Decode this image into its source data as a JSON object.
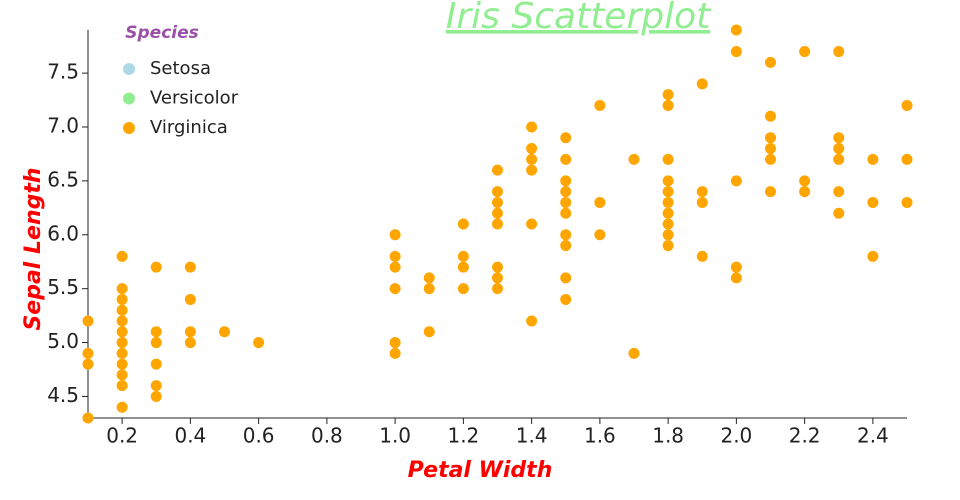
{
  "chart_data": {
    "type": "scatter",
    "title": "Iris Scatterplot",
    "title_color": "lightgreen",
    "x_label": "Petal Width",
    "y_label": "Sepal Length",
    "legend": {
      "title": "Species",
      "items": [
        {
          "name": "Setosa",
          "color": "lightblue"
        },
        {
          "name": "Versicolor",
          "color": "lightgreen"
        },
        {
          "name": "Virginica",
          "color": "orange"
        }
      ]
    },
    "point_color": "orange",
    "x": [
      0.1,
      0.1,
      0.1,
      0.1,
      0.2,
      0.2,
      0.2,
      0.2,
      0.2,
      0.2,
      0.2,
      0.2,
      0.2,
      0.2,
      0.2,
      0.2,
      0.3,
      0.3,
      0.3,
      0.3,
      0.3,
      0.3,
      0.4,
      0.4,
      0.4,
      0.4,
      0.5,
      0.6,
      1.0,
      1.0,
      1.0,
      1.0,
      1.0,
      1.0,
      1.1,
      1.1,
      1.1,
      1.2,
      1.2,
      1.2,
      1.2,
      1.3,
      1.3,
      1.3,
      1.3,
      1.3,
      1.3,
      1.3,
      1.3,
      1.4,
      1.4,
      1.4,
      1.4,
      1.4,
      1.4,
      1.5,
      1.5,
      1.5,
      1.5,
      1.5,
      1.5,
      1.5,
      1.5,
      1.5,
      1.5,
      1.6,
      1.6,
      1.6,
      1.7,
      1.7,
      1.8,
      1.8,
      1.8,
      1.8,
      1.8,
      1.8,
      1.8,
      1.8,
      1.8,
      1.8,
      1.9,
      1.9,
      1.9,
      1.9,
      2.0,
      2.0,
      2.0,
      2.0,
      2.0,
      2.1,
      2.1,
      2.1,
      2.1,
      2.1,
      2.1,
      2.2,
      2.2,
      2.2,
      2.3,
      2.3,
      2.3,
      2.3,
      2.3,
      2.3,
      2.4,
      2.4,
      2.4,
      2.5,
      2.5,
      2.5
    ],
    "values": [
      5.2,
      4.9,
      4.8,
      4.3,
      5.8,
      5.5,
      5.4,
      5.3,
      5.2,
      5.1,
      5.0,
      4.9,
      4.8,
      4.7,
      4.6,
      4.4,
      5.7,
      5.1,
      5.0,
      4.8,
      4.6,
      4.5,
      5.7,
      5.4,
      5.1,
      5.0,
      5.1,
      5.0,
      6.0,
      5.8,
      5.7,
      5.5,
      5.0,
      4.9,
      5.6,
      5.5,
      5.1,
      6.1,
      5.8,
      5.7,
      5.5,
      6.6,
      6.4,
      6.3,
      6.2,
      6.1,
      5.7,
      5.6,
      5.5,
      7.0,
      6.8,
      6.7,
      6.6,
      6.1,
      5.2,
      6.9,
      6.7,
      6.5,
      6.4,
      6.3,
      6.2,
      6.0,
      5.9,
      5.6,
      5.4,
      7.2,
      6.3,
      6.0,
      6.7,
      4.9,
      7.3,
      7.2,
      6.7,
      6.5,
      6.4,
      6.3,
      6.2,
      6.1,
      6.0,
      5.9,
      7.4,
      6.4,
      6.3,
      5.8,
      7.9,
      7.7,
      6.5,
      5.7,
      5.6,
      7.6,
      7.1,
      6.9,
      6.8,
      6.7,
      6.4,
      7.7,
      6.5,
      6.4,
      7.7,
      6.9,
      6.8,
      6.7,
      6.4,
      6.2,
      6.7,
      6.3,
      5.8,
      7.2,
      6.7,
      6.3
    ],
    "xlim": [
      0.1,
      2.5
    ],
    "xticks": [
      0.2,
      0.4,
      0.6,
      0.8,
      {
        "value": 1.0,
        "label": "1.0"
      },
      1.2,
      1.4,
      1.6,
      1.8,
      {
        "value": 2.0,
        "label": "2.0"
      },
      2.2,
      2.4
    ],
    "ylim": [
      4.3,
      7.9
    ],
    "yticks": [
      4.5,
      {
        "value": 5.0,
        "label": "5.0"
      },
      5.5,
      {
        "value": 6.0,
        "label": "6.0"
      },
      6.5,
      {
        "value": 7.0,
        "label": "7.0"
      },
      7.5
    ],
    "grid": false
  }
}
